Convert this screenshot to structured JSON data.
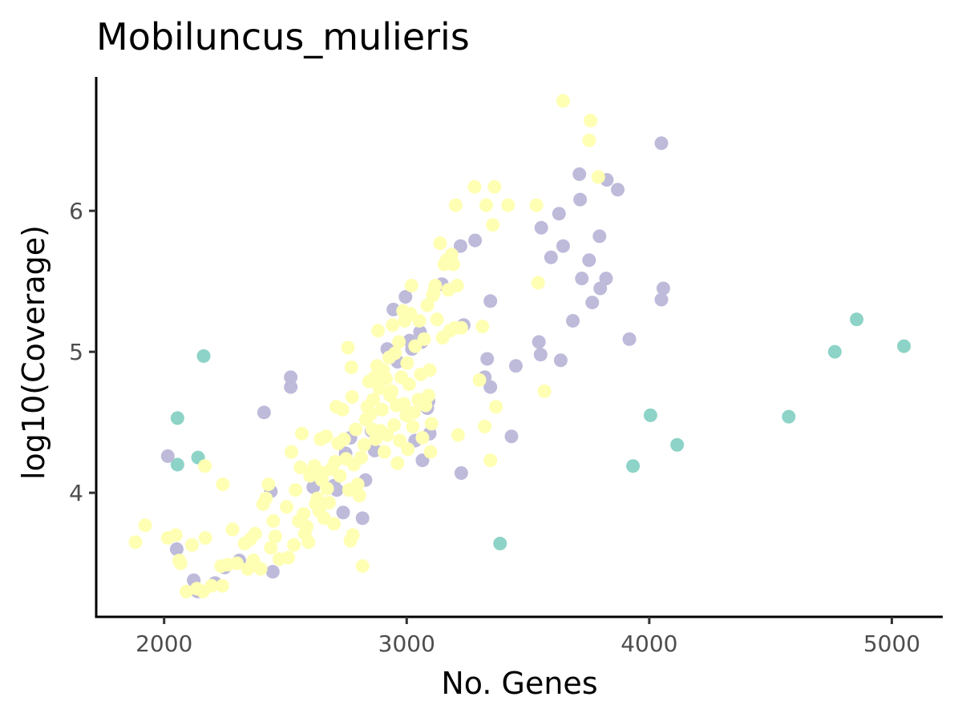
{
  "chart_data": {
    "type": "scatter",
    "title": "Mobiluncus_mulieris",
    "xlabel": "No. Genes",
    "ylabel": "log10(Coverage)",
    "xlim": [
      1720,
      5210
    ],
    "ylim": [
      3.12,
      6.95
    ],
    "x_ticks": [
      2000,
      3000,
      4000,
      5000
    ],
    "y_ticks": [
      4,
      5,
      6
    ],
    "grid": false,
    "legend": "none",
    "series": [
      {
        "color": "#8dd3c7",
        "points": [
          [
            2163,
            4.97
          ],
          [
            2055,
            4.53
          ],
          [
            2140,
            4.25
          ],
          [
            2055,
            4.2
          ],
          [
            3385,
            3.64
          ],
          [
            3933,
            4.19
          ],
          [
            4005,
            4.55
          ],
          [
            4115,
            4.34
          ],
          [
            4575,
            4.54
          ],
          [
            4765,
            5.0
          ],
          [
            4855,
            5.23
          ],
          [
            5050,
            5.04
          ]
        ]
      },
      {
        "color": "#bebada",
        "points": [
          [
            2015,
            4.26
          ],
          [
            2052,
            3.6
          ],
          [
            2122,
            3.38
          ],
          [
            2138,
            3.3
          ],
          [
            2210,
            3.36
          ],
          [
            2250,
            3.47
          ],
          [
            2310,
            3.52
          ],
          [
            2412,
            4.57
          ],
          [
            2440,
            4.01
          ],
          [
            2448,
            3.44
          ],
          [
            2522,
            4.82
          ],
          [
            2522,
            4.75
          ],
          [
            2615,
            4.04
          ],
          [
            2700,
            4.05
          ],
          [
            2712,
            4.02
          ],
          [
            2738,
            3.86
          ],
          [
            2748,
            4.28
          ],
          [
            2768,
            4.39
          ],
          [
            2818,
            3.82
          ],
          [
            2830,
            4.09
          ],
          [
            2855,
            4.44
          ],
          [
            2868,
            4.3
          ],
          [
            2920,
            5.02
          ],
          [
            2945,
            5.3
          ],
          [
            2962,
            4.93
          ],
          [
            2995,
            5.39
          ],
          [
            3012,
            5.08
          ],
          [
            3022,
            5.02
          ],
          [
            3035,
            4.37
          ],
          [
            3055,
            5.14
          ],
          [
            3062,
            5.07
          ],
          [
            3065,
            4.23
          ],
          [
            3085,
            4.6
          ],
          [
            3090,
            4.65
          ],
          [
            3095,
            4.42
          ],
          [
            3145,
            5.48
          ],
          [
            3222,
            5.75
          ],
          [
            3225,
            4.14
          ],
          [
            3235,
            5.19
          ],
          [
            3282,
            5.79
          ],
          [
            3322,
            4.82
          ],
          [
            3332,
            4.95
          ],
          [
            3345,
            4.75
          ],
          [
            3345,
            5.36
          ],
          [
            3432,
            4.4
          ],
          [
            3450,
            4.9
          ],
          [
            3545,
            5.07
          ],
          [
            3552,
            4.98
          ],
          [
            3555,
            5.88
          ],
          [
            3595,
            5.67
          ],
          [
            3628,
            5.98
          ],
          [
            3635,
            4.94
          ],
          [
            3645,
            5.75
          ],
          [
            3685,
            5.22
          ],
          [
            3712,
            6.26
          ],
          [
            3715,
            6.08
          ],
          [
            3722,
            5.52
          ],
          [
            3752,
            5.65
          ],
          [
            3765,
            5.35
          ],
          [
            3795,
            5.82
          ],
          [
            3798,
            5.45
          ],
          [
            3822,
            5.52
          ],
          [
            3825,
            6.22
          ],
          [
            3870,
            6.15
          ],
          [
            3918,
            5.09
          ],
          [
            4050,
            6.48
          ],
          [
            4050,
            5.37
          ],
          [
            4058,
            5.45
          ]
        ]
      },
      {
        "color": "#ffffb3",
        "points": [
          [
            1882,
            3.65
          ],
          [
            1922,
            3.77
          ],
          [
            2015,
            3.68
          ],
          [
            2048,
            3.7
          ],
          [
            2062,
            3.52
          ],
          [
            2068,
            3.5
          ],
          [
            2092,
            3.3
          ],
          [
            2115,
            3.63
          ],
          [
            2135,
            3.32
          ],
          [
            2160,
            3.3
          ],
          [
            2168,
            4.19
          ],
          [
            2170,
            3.68
          ],
          [
            2195,
            3.34
          ],
          [
            2235,
            3.48
          ],
          [
            2240,
            3.34
          ],
          [
            2242,
            4.06
          ],
          [
            2262,
            3.49
          ],
          [
            2282,
            3.74
          ],
          [
            2300,
            3.5
          ],
          [
            2332,
            3.64
          ],
          [
            2345,
            3.46
          ],
          [
            2355,
            3.67
          ],
          [
            2368,
            3.52
          ],
          [
            2375,
            3.71
          ],
          [
            2398,
            3.46
          ],
          [
            2408,
            3.92
          ],
          [
            2420,
            3.96
          ],
          [
            2430,
            4.06
          ],
          [
            2440,
            3.61
          ],
          [
            2450,
            3.8
          ],
          [
            2458,
            3.69
          ],
          [
            2475,
            3.53
          ],
          [
            2505,
            3.9
          ],
          [
            2512,
            3.54
          ],
          [
            2525,
            4.29
          ],
          [
            2535,
            3.63
          ],
          [
            2542,
            4.02
          ],
          [
            2555,
            3.8
          ],
          [
            2562,
            4.18
          ],
          [
            2568,
            4.42
          ],
          [
            2575,
            3.85
          ],
          [
            2580,
            3.71
          ],
          [
            2588,
            3.76
          ],
          [
            2595,
            3.65
          ],
          [
            2602,
            4.12
          ],
          [
            2610,
            4.15
          ],
          [
            2620,
            4.19
          ],
          [
            2625,
            3.92
          ],
          [
            2632,
            3.96
          ],
          [
            2640,
            3.87
          ],
          [
            2645,
            4.38
          ],
          [
            2650,
            4.09
          ],
          [
            2655,
            4.14
          ],
          [
            2660,
            3.82
          ],
          [
            2668,
            4.4
          ],
          [
            2672,
            4.03
          ],
          [
            2680,
            3.93
          ],
          [
            2690,
            4.17
          ],
          [
            2700,
            3.78
          ],
          [
            2705,
            4.22
          ],
          [
            2710,
            4.61
          ],
          [
            2718,
            4.35
          ],
          [
            2725,
            4.12
          ],
          [
            2735,
            4.59
          ],
          [
            2742,
            4.38
          ],
          [
            2750,
            4.24
          ],
          [
            2758,
            5.03
          ],
          [
            2762,
            4.02
          ],
          [
            2768,
            3.66
          ],
          [
            2772,
            4.89
          ],
          [
            2775,
            4.68
          ],
          [
            2778,
            3.7
          ],
          [
            2782,
            4.2
          ],
          [
            2790,
            4.45
          ],
          [
            2798,
            4.06
          ],
          [
            2805,
            3.98
          ],
          [
            2812,
            4.25
          ],
          [
            2818,
            3.48
          ],
          [
            2825,
            4.34
          ],
          [
            2832,
            4.52
          ],
          [
            2838,
            4.61
          ],
          [
            2845,
            4.79
          ],
          [
            2852,
            4.56
          ],
          [
            2858,
            4.45
          ],
          [
            2862,
            4.66
          ],
          [
            2868,
            4.82
          ],
          [
            2872,
            4.38
          ],
          [
            2878,
            4.9
          ],
          [
            2882,
            5.15
          ],
          [
            2888,
            4.74
          ],
          [
            2892,
            4.44
          ],
          [
            2898,
            4.59
          ],
          [
            2902,
            4.87
          ],
          [
            2908,
            4.29
          ],
          [
            2915,
            4.81
          ],
          [
            2920,
            4.41
          ],
          [
            2928,
            4.96
          ],
          [
            2932,
            4.69
          ],
          [
            2938,
            4.72
          ],
          [
            2942,
            5.19
          ],
          [
            2948,
            4.48
          ],
          [
            2952,
            4.99
          ],
          [
            2958,
            4.62
          ],
          [
            2962,
            4.21
          ],
          [
            2968,
            5.07
          ],
          [
            2972,
            4.37
          ],
          [
            2978,
            4.82
          ],
          [
            2985,
            5.29
          ],
          [
            2988,
            4.63
          ],
          [
            2992,
            5.22
          ],
          [
            2998,
            4.55
          ],
          [
            3002,
            4.92
          ],
          [
            3005,
            4.31
          ],
          [
            3010,
            4.77
          ],
          [
            3015,
            5.27
          ],
          [
            3020,
            5.47
          ],
          [
            3025,
            4.47
          ],
          [
            3030,
            4.57
          ],
          [
            3035,
            5.04
          ],
          [
            3048,
            4.66
          ],
          [
            3052,
            5.22
          ],
          [
            3058,
            4.84
          ],
          [
            3065,
            4.39
          ],
          [
            3072,
            5.09
          ],
          [
            3078,
            4.62
          ],
          [
            3085,
            5.33
          ],
          [
            3090,
            4.69
          ],
          [
            3095,
            4.87
          ],
          [
            3098,
            4.29
          ],
          [
            3102,
            4.49
          ],
          [
            3108,
            5.4
          ],
          [
            3112,
            5.42
          ],
          [
            3118,
            5.47
          ],
          [
            3125,
            5.23
          ],
          [
            3138,
            5.77
          ],
          [
            3148,
            5.1
          ],
          [
            3155,
            5.62
          ],
          [
            3165,
            5.65
          ],
          [
            3172,
            5.44
          ],
          [
            3178,
            5.15
          ],
          [
            3185,
            5.69
          ],
          [
            3192,
            5.62
          ],
          [
            3198,
            5.17
          ],
          [
            3202,
            6.04
          ],
          [
            3208,
            5.47
          ],
          [
            3212,
            4.41
          ],
          [
            3225,
            5.17
          ],
          [
            3280,
            6.17
          ],
          [
            3300,
            4.8
          ],
          [
            3312,
            5.18
          ],
          [
            3322,
            4.47
          ],
          [
            3328,
            6.04
          ],
          [
            3345,
            4.23
          ],
          [
            3355,
            5.9
          ],
          [
            3362,
            6.17
          ],
          [
            3368,
            4.61
          ],
          [
            3418,
            6.04
          ],
          [
            3535,
            6.04
          ],
          [
            3542,
            5.49
          ],
          [
            3568,
            4.72
          ],
          [
            3645,
            6.78
          ],
          [
            3752,
            6.5
          ],
          [
            3758,
            6.64
          ],
          [
            3790,
            6.24
          ]
        ]
      }
    ]
  }
}
